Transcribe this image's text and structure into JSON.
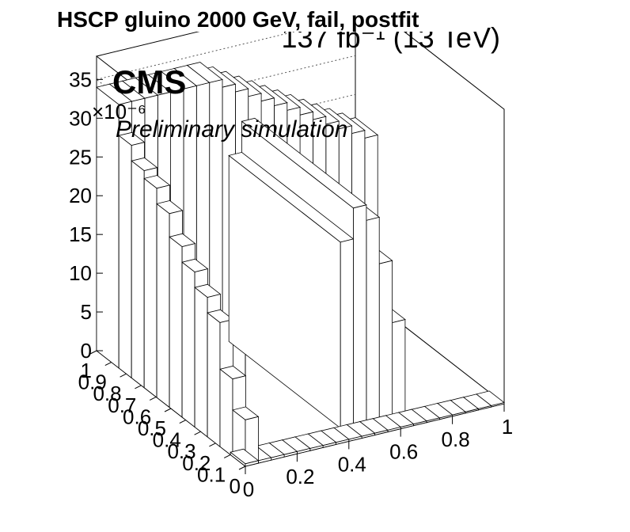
{
  "title": "HSCP gluino 2000 GeV, fail, postfit",
  "lumi_label": "137 fb⁻¹ (13 TeV)",
  "cms_label": "CMS",
  "cms_sublabel": "Preliminary simulation",
  "colors": {
    "line": "#000000",
    "background": "#ffffff",
    "bar_face": "#ffffff"
  },
  "chart_data": {
    "type": "lego",
    "title": "HSCP gluino 2000 GeV, fail, postfit",
    "z_exponent_label": "×10⁻⁶",
    "z_ticks": [
      "0",
      "5",
      "10",
      "15",
      "20",
      "25",
      "30",
      "35"
    ],
    "z_range": [
      0,
      38
    ],
    "x_ticks": [
      "0",
      "0.2",
      "0.4",
      "0.6",
      "0.8",
      "1"
    ],
    "x_range": [
      0,
      1
    ],
    "y_ticks": [
      "0",
      "0.1",
      "0.2",
      "0.3",
      "0.4",
      "0.5",
      "0.6",
      "0.7",
      "0.8",
      "0.9",
      "1"
    ],
    "y_range": [
      0,
      1
    ],
    "grid": true,
    "front_row_x": [
      0.025,
      0.075,
      0.125,
      0.175,
      0.225,
      0.275,
      0.325,
      0.375,
      0.425,
      0.475,
      0.525,
      0.575,
      0.625,
      0.675,
      0.725,
      0.775,
      0.825,
      0.875,
      0.925,
      0.975
    ],
    "front_row_values": [
      0.33,
      0.32,
      0.31,
      0.3,
      0.29,
      0.28,
      0.27,
      0.26,
      0.25,
      0.24,
      0.23,
      0.22,
      0.21,
      0.2,
      0.19,
      0.18,
      0.17,
      0.16,
      0.15,
      0.14
    ],
    "back_row_values": [
      34,
      34,
      34,
      34,
      34,
      34,
      34,
      34,
      33,
      32,
      31,
      30,
      29,
      28,
      27,
      26,
      25,
      24,
      23,
      22
    ],
    "side_column_values": [
      6,
      10,
      16,
      18,
      20,
      22,
      25,
      27,
      28,
      30
    ],
    "peak_bars": [
      {
        "x": 0.45,
        "value": 24
      },
      {
        "x": 0.5,
        "value": 28
      },
      {
        "x": 0.55,
        "value": 26
      },
      {
        "x": 0.6,
        "value": 20
      },
      {
        "x": 0.65,
        "value": 12
      }
    ]
  }
}
